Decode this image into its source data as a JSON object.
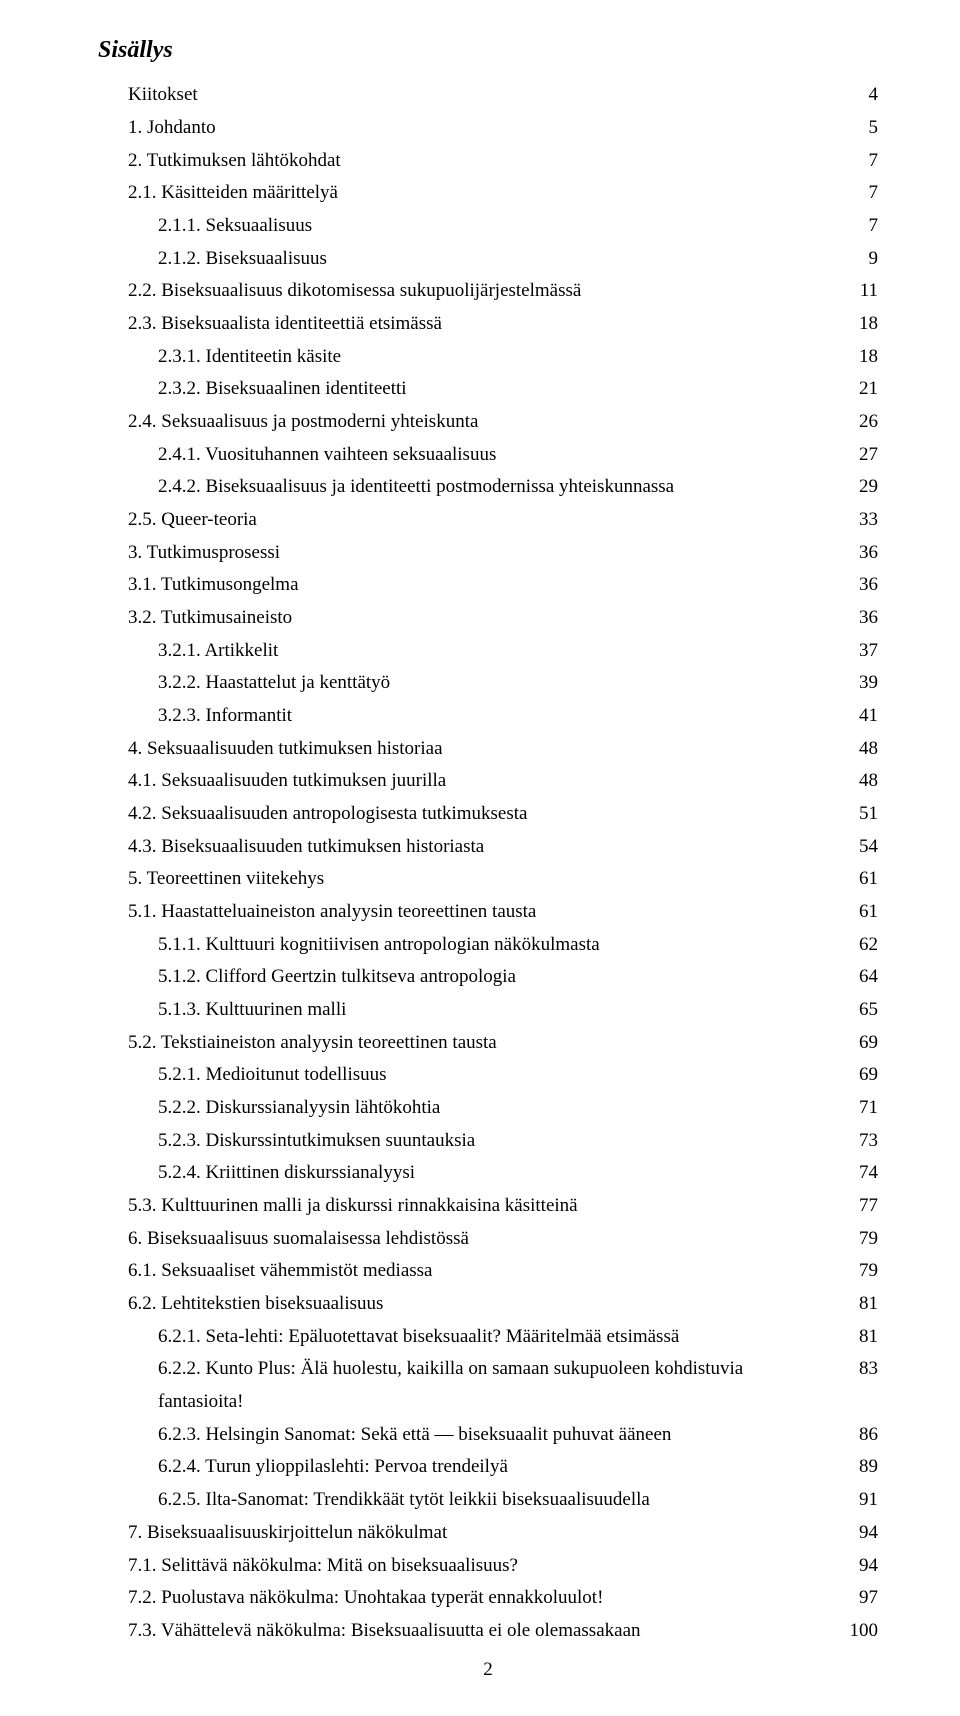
{
  "title": "Sisällys",
  "footer_page": "2",
  "entries": [
    {
      "label": "Kiitokset",
      "page": "4",
      "indent": 0
    },
    {
      "label": "1. Johdanto",
      "page": "5",
      "indent": 0
    },
    {
      "label": "2. Tutkimuksen lähtökohdat",
      "page": "7",
      "indent": 0
    },
    {
      "label": "2.1. Käsitteiden määrittelyä",
      "page": "7",
      "indent": 1
    },
    {
      "label": "2.1.1. Seksuaalisuus",
      "page": "7",
      "indent": 2
    },
    {
      "label": "2.1.2. Biseksuaalisuus",
      "page": "9",
      "indent": 2
    },
    {
      "label": "2.2. Biseksuaalisuus dikotomisessa sukupuolijärjestelmässä",
      "page": "11",
      "indent": 1
    },
    {
      "label": "2.3. Biseksuaalista identiteettiä etsimässä",
      "page": "18",
      "indent": 1
    },
    {
      "label": "2.3.1. Identiteetin käsite",
      "page": "18",
      "indent": 2
    },
    {
      "label": "2.3.2. Biseksuaalinen identiteetti",
      "page": "21",
      "indent": 2
    },
    {
      "label": "2.4. Seksuaalisuus ja postmoderni yhteiskunta",
      "page": "26",
      "indent": 1
    },
    {
      "label": "2.4.1. Vuosituhannen vaihteen seksuaalisuus",
      "page": "27",
      "indent": 2
    },
    {
      "label": "2.4.2. Biseksuaalisuus ja identiteetti postmodernissa yhteiskunnassa",
      "page": "29",
      "indent": 2
    },
    {
      "label": "2.5. Queer-teoria",
      "page": "33",
      "indent": 1
    },
    {
      "label": "3. Tutkimusprosessi",
      "page": "36",
      "indent": 0
    },
    {
      "label": "3.1. Tutkimusongelma",
      "page": "36",
      "indent": 1
    },
    {
      "label": "3.2. Tutkimusaineisto",
      "page": "36",
      "indent": 1
    },
    {
      "label": "3.2.1. Artikkelit",
      "page": "37",
      "indent": 2
    },
    {
      "label": "3.2.2. Haastattelut ja kenttätyö",
      "page": "39",
      "indent": 2
    },
    {
      "label": "3.2.3. Informantit",
      "page": "41",
      "indent": 2
    },
    {
      "label": "4. Seksuaalisuuden tutkimuksen historiaa",
      "page": "48",
      "indent": 0
    },
    {
      "label": "4.1. Seksuaalisuuden tutkimuksen juurilla",
      "page": "48",
      "indent": 1
    },
    {
      "label": "4.2. Seksuaalisuuden antropologisesta tutkimuksesta",
      "page": "51",
      "indent": 1
    },
    {
      "label": "4.3. Biseksuaalisuuden tutkimuksen historiasta",
      "page": "54",
      "indent": 1
    },
    {
      "label": "5. Teoreettinen viitekehys",
      "page": "61",
      "indent": 0
    },
    {
      "label": "5.1. Haastatteluaineiston analyysin teoreettinen tausta",
      "page": "61",
      "indent": 1
    },
    {
      "label": "5.1.1. Kulttuuri kognitiivisen antropologian näkökulmasta",
      "page": "62",
      "indent": 2
    },
    {
      "label": "5.1.2. Clifford Geertzin tulkitseva antropologia",
      "page": "64",
      "indent": 2
    },
    {
      "label": "5.1.3. Kulttuurinen malli",
      "page": "65",
      "indent": 2
    },
    {
      "label": "5.2. Tekstiaineiston analyysin teoreettinen tausta",
      "page": "69",
      "indent": 1
    },
    {
      "label": "5.2.1. Medioitunut todellisuus",
      "page": "69",
      "indent": 2
    },
    {
      "label": "5.2.2. Diskurssianalyysin lähtökohtia",
      "page": "71",
      "indent": 2
    },
    {
      "label": "5.2.3. Diskurssintutkimuksen suuntauksia",
      "page": "73",
      "indent": 2
    },
    {
      "label": "5.2.4. Kriittinen diskurssianalyysi",
      "page": "74",
      "indent": 2
    },
    {
      "label": "5.3. Kulttuurinen malli ja diskurssi rinnakkaisina käsitteinä",
      "page": "77",
      "indent": 1
    },
    {
      "label": "6. Biseksuaalisuus suomalaisessa lehdistössä",
      "page": "79",
      "indent": 0
    },
    {
      "label": "6.1. Seksuaaliset vähemmistöt mediassa",
      "page": "79",
      "indent": 1
    },
    {
      "label": "6.2. Lehtitekstien biseksuaalisuus",
      "page": "81",
      "indent": 1
    },
    {
      "label": "6.2.1. Seta-lehti: Epäluotettavat biseksuaalit? Määritelmää etsimässä",
      "page": "81",
      "indent": 2
    },
    {
      "label": "6.2.2. Kunto Plus: Älä huolestu, kaikilla on samaan sukupuoleen kohdistuvia fantasioita!",
      "page": "83",
      "indent": 2
    },
    {
      "label": "6.2.3. Helsingin Sanomat: Sekä että — biseksuaalit puhuvat ääneen",
      "page": "86",
      "indent": 2
    },
    {
      "label": "6.2.4. Turun ylioppilaslehti: Pervoa trendeilyä",
      "page": "89",
      "indent": 2
    },
    {
      "label": "6.2.5. Ilta-Sanomat: Trendikkäät tytöt leikkii biseksuaalisuudella",
      "page": "91",
      "indent": 2
    },
    {
      "label": "7. Biseksuaalisuuskirjoittelun näkökulmat",
      "page": "94",
      "indent": 0
    },
    {
      "label": "7.1. Selittävä näkökulma: Mitä on biseksuaalisuus?",
      "page": "94",
      "indent": 1
    },
    {
      "label": "7.2. Puolustava näkökulma: Unohtakaa typerät ennakkoluulot!",
      "page": "97",
      "indent": 1
    },
    {
      "label": "7.3. Vähättelevä näkökulma: Biseksuaalisuutta ei ole olemassakaan",
      "page": "100",
      "indent": 1
    }
  ]
}
